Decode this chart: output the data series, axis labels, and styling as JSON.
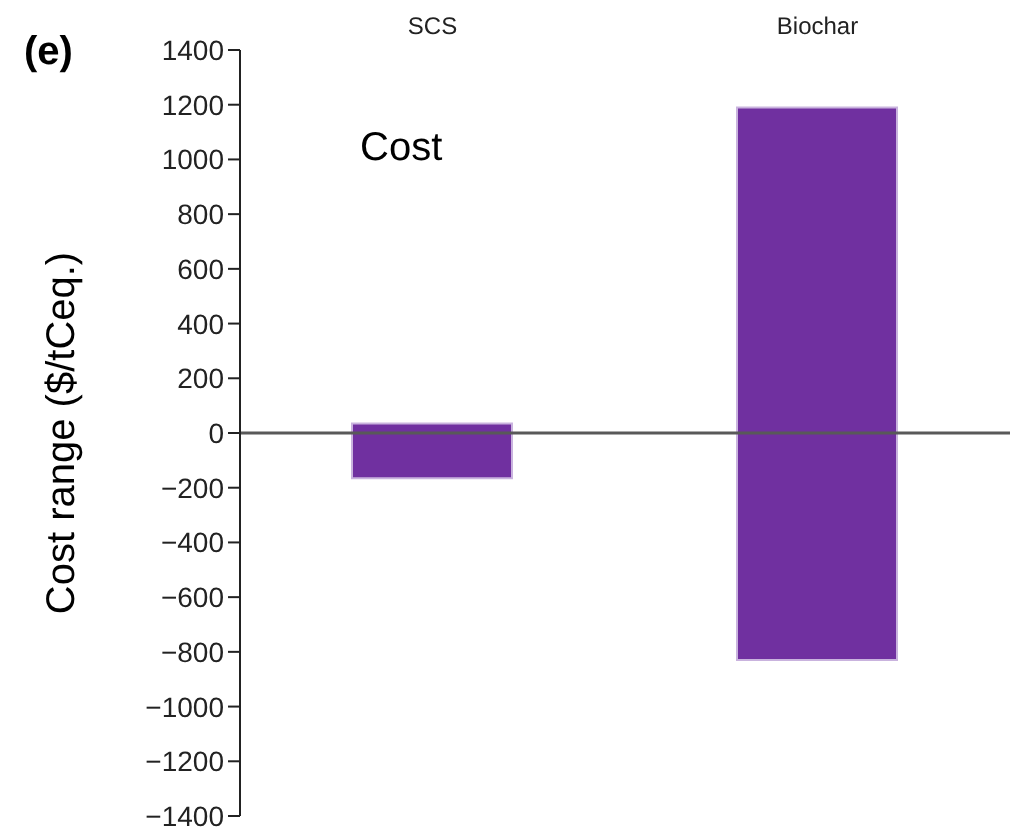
{
  "chart_data": {
    "type": "bar",
    "title": "(e)",
    "ylabel": "Cost range ($/tCeq.)",
    "annotations": [
      "Cost"
    ],
    "categories": [
      "SCS",
      "Biochar"
    ],
    "values": [
      200,
      2020
    ],
    "base": [
      -165,
      -830
    ],
    "color": "#7030a0",
    "ylim": [
      -1400,
      1400
    ],
    "yticks": [
      -1400,
      -1200,
      -1000,
      -800,
      -600,
      -400,
      -200,
      0,
      200,
      400,
      600,
      800,
      1000,
      1200,
      1400
    ],
    "ref_lines": [
      {
        "axis": "y",
        "value": 0,
        "color": "#595959"
      }
    ],
    "grid": false,
    "legend": false
  }
}
